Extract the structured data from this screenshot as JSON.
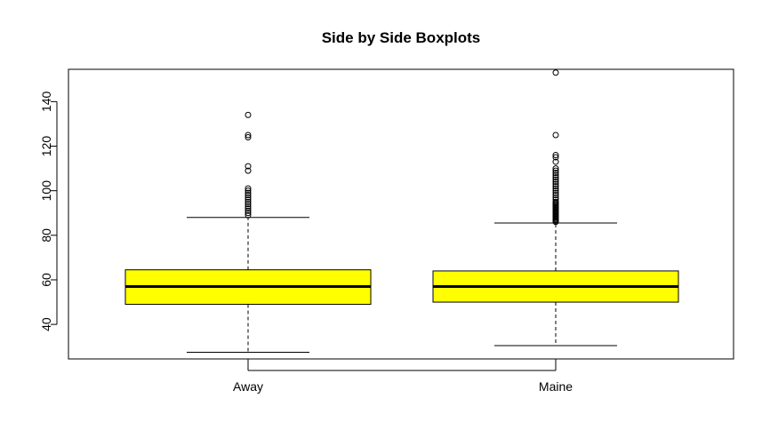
{
  "chart_data": {
    "type": "box",
    "title": "Side by Side Boxplots",
    "xlabel": "",
    "ylabel": "",
    "ylim": [
      24,
      155
    ],
    "yticks": [
      40,
      60,
      80,
      100,
      120,
      140
    ],
    "grid": false,
    "box_color": "#ffff00",
    "categories": [
      "Away",
      "Maine"
    ],
    "boxes": [
      {
        "name": "Away",
        "whisker_low": 27.5,
        "q1": 49,
        "median": 57,
        "q3": 64.5,
        "whisker_high": 88,
        "outliers": [
          89,
          90,
          91,
          92,
          93,
          94,
          95,
          96,
          97,
          98,
          99,
          100,
          101,
          109,
          111,
          124,
          125,
          134
        ]
      },
      {
        "name": "Maine",
        "whisker_low": 30.5,
        "q1": 50,
        "median": 57,
        "q3": 64,
        "whisker_high": 85.5,
        "outliers": [
          86,
          86.5,
          87,
          87.5,
          88,
          88.5,
          89,
          89.5,
          90,
          90.5,
          91,
          91.5,
          92,
          92.5,
          93,
          93.5,
          94,
          94.5,
          95,
          96,
          97,
          98,
          99,
          100,
          101,
          102,
          103,
          104,
          105,
          106,
          107,
          108,
          109,
          110,
          113,
          115,
          116,
          125,
          153
        ]
      }
    ]
  }
}
